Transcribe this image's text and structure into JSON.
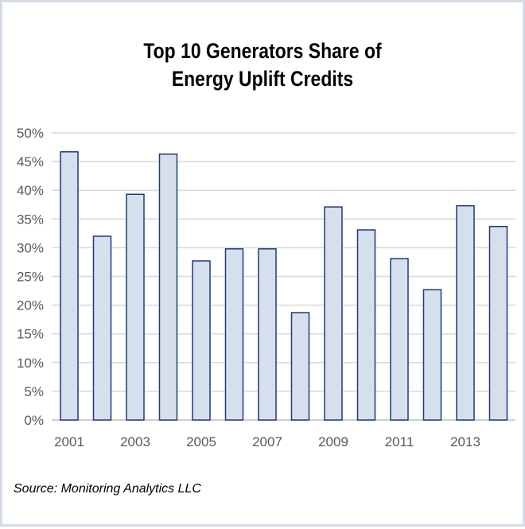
{
  "chart_data": {
    "type": "bar",
    "title_lines": [
      "Top 10 Generators Share of",
      "Energy Uplift Credits"
    ],
    "categories": [
      "2001",
      "2002",
      "2003",
      "2004",
      "2005",
      "2006",
      "2007",
      "2008",
      "2009",
      "2010",
      "2011",
      "2012",
      "2013",
      "2014"
    ],
    "values": [
      46.7,
      32.0,
      39.3,
      46.3,
      27.7,
      29.8,
      29.8,
      18.7,
      37.1,
      33.1,
      28.1,
      22.7,
      37.3,
      33.7
    ],
    "x_tick_labels": [
      "2001",
      "2003",
      "2005",
      "2007",
      "2009",
      "2011",
      "2013"
    ],
    "y_tick_labels": [
      "0%",
      "5%",
      "10%",
      "15%",
      "20%",
      "25%",
      "30%",
      "35%",
      "40%",
      "45%",
      "50%"
    ],
    "ylim": [
      0,
      50
    ],
    "grid": true,
    "xlabel": "",
    "ylabel": "",
    "bar_fill": "#d6dfec",
    "bar_stroke": "#1f3a7a"
  },
  "source": "Source: Monitoring Analytics LLC"
}
